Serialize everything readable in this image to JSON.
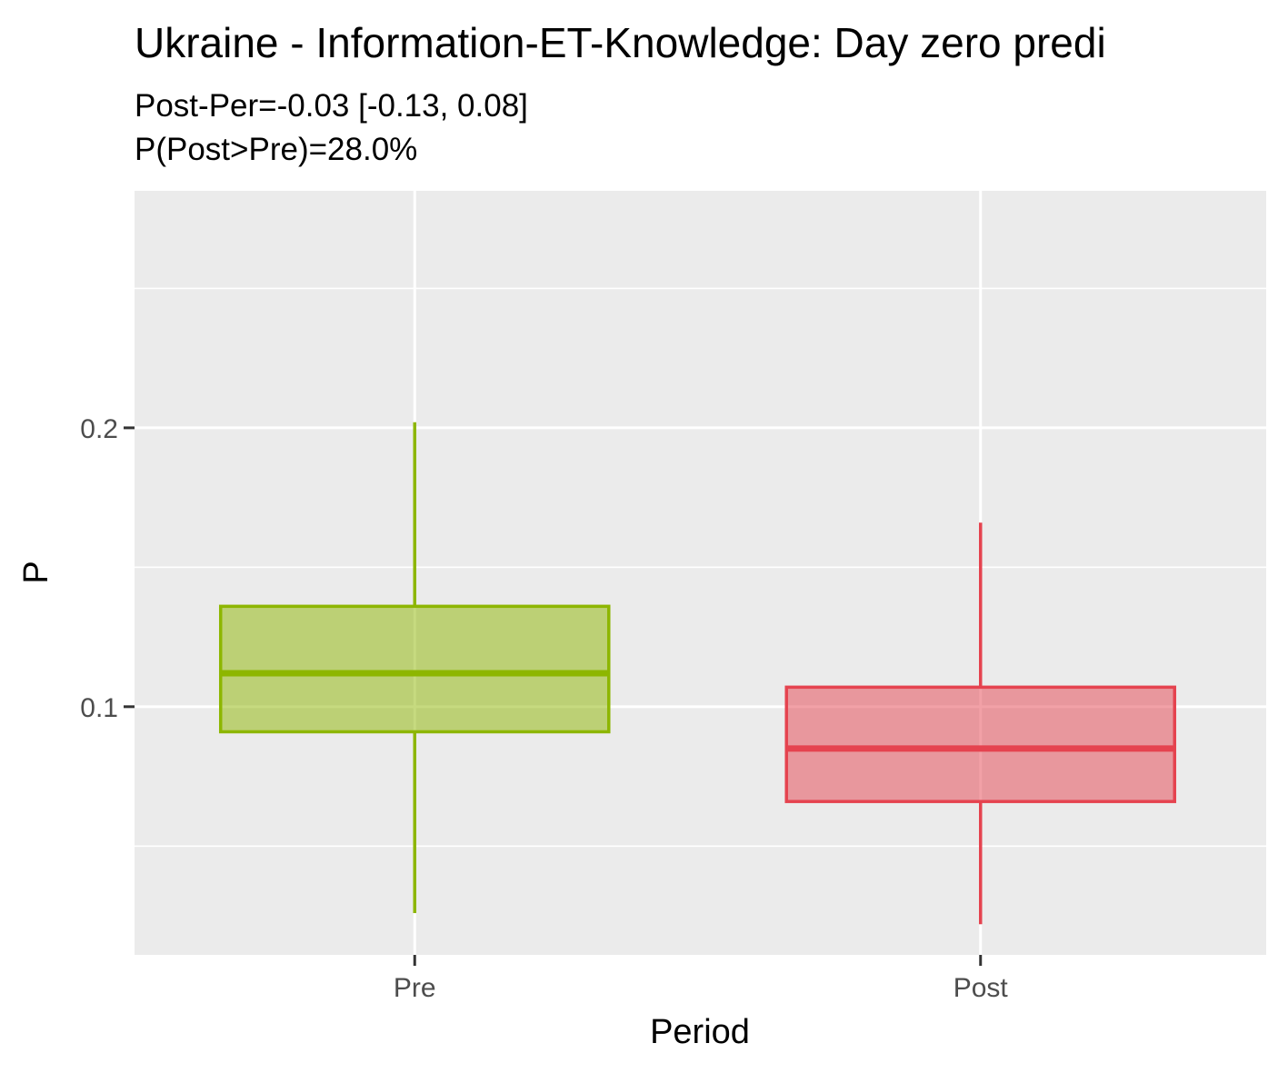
{
  "chart_data": {
    "type": "boxplot",
    "title": "Ukraine - Information-ET-Knowledge: Day zero predi",
    "subtitle_lines": [
      "Post-Per=-0.03 [-0.13, 0.08]",
      "P(Post>Pre)=28.0%"
    ],
    "xlabel": "Period",
    "ylabel": "P",
    "categories": [
      "Pre",
      "Post"
    ],
    "ylim": [
      0.011,
      0.285
    ],
    "y_ticks": [
      0.1,
      0.2
    ],
    "y_tick_labels": [
      "0.1",
      "0.2"
    ],
    "y_minor_ticks": [
      0.05,
      0.15,
      0.25
    ],
    "grid": true,
    "legend": "none",
    "boxes": [
      {
        "category": "Pre",
        "min": 0.026,
        "q1": 0.091,
        "median": 0.112,
        "q3": 0.136,
        "max": 0.202,
        "color": "#8DB600"
      },
      {
        "category": "Post",
        "min": 0.022,
        "q1": 0.066,
        "median": 0.085,
        "q3": 0.107,
        "max": 0.166,
        "color": "#E5434F"
      }
    ]
  },
  "colors": {
    "panel_background": "#EBEBEB",
    "grid": "#FFFFFF",
    "tick_text": "#4D4D4D"
  }
}
